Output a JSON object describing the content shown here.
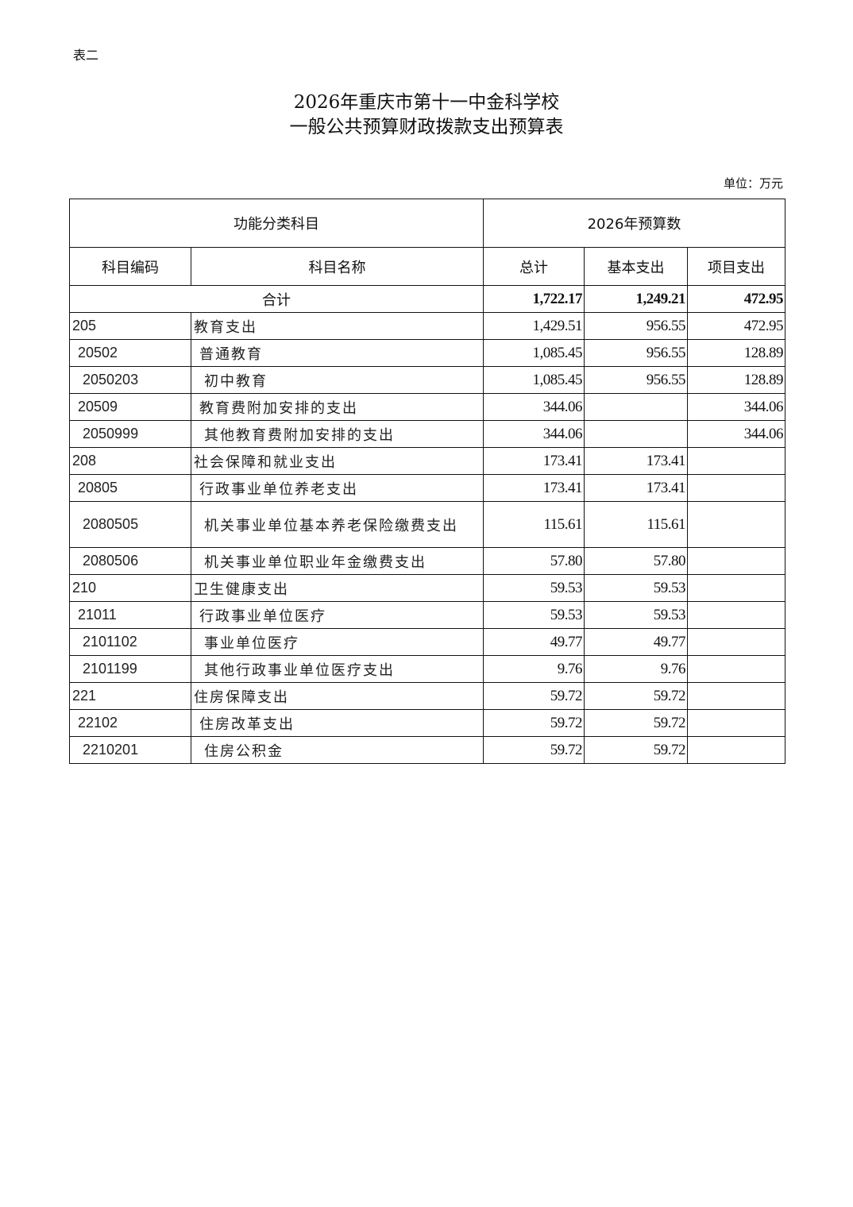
{
  "doc_tag": "表二",
  "title_line1": "2026年重庆市第十一中金科学校",
  "title_line2": "一般公共预算财政拨款支出预算表",
  "unit": "单位：万元",
  "header": {
    "group_left": "功能分类科目",
    "group_right": "2026年预算数",
    "code": "科目编码",
    "name": "科目名称",
    "total": "总计",
    "basic": "基本支出",
    "project": "项目支出"
  },
  "total_row": {
    "label": "合计",
    "total": "1,722.17",
    "basic": "1,249.21",
    "project": "472.95"
  },
  "rows": [
    {
      "code": "205",
      "name": "教育支出",
      "total": "1,429.51",
      "basic": "956.55",
      "project": "472.95",
      "level": 1
    },
    {
      "code": "20502",
      "name": "普通教育",
      "total": "1,085.45",
      "basic": "956.55",
      "project": "128.89",
      "level": 2
    },
    {
      "code": "2050203",
      "name": "初中教育",
      "total": "1,085.45",
      "basic": "956.55",
      "project": "128.89",
      "level": 3
    },
    {
      "code": "20509",
      "name": "教育费附加安排的支出",
      "total": "344.06",
      "basic": "",
      "project": "344.06",
      "level": 2
    },
    {
      "code": "2050999",
      "name": "其他教育费附加安排的支出",
      "total": "344.06",
      "basic": "",
      "project": "344.06",
      "level": 3
    },
    {
      "code": "208",
      "name": "社会保障和就业支出",
      "total": "173.41",
      "basic": "173.41",
      "project": "",
      "level": 1
    },
    {
      "code": "20805",
      "name": "行政事业单位养老支出",
      "total": "173.41",
      "basic": "173.41",
      "project": "",
      "level": 2
    },
    {
      "code": "2080505",
      "name": "机关事业单位基本养老保险缴费支出",
      "total": "115.61",
      "basic": "115.61",
      "project": "",
      "level": 3
    },
    {
      "code": "2080506",
      "name": "机关事业单位职业年金缴费支出",
      "total": "57.80",
      "basic": "57.80",
      "project": "",
      "level": 3
    },
    {
      "code": "210",
      "name": "卫生健康支出",
      "total": "59.53",
      "basic": "59.53",
      "project": "",
      "level": 1
    },
    {
      "code": "21011",
      "name": "行政事业单位医疗",
      "total": "59.53",
      "basic": "59.53",
      "project": "",
      "level": 2
    },
    {
      "code": "2101102",
      "name": "事业单位医疗",
      "total": "49.77",
      "basic": "49.77",
      "project": "",
      "level": 3
    },
    {
      "code": "2101199",
      "name": "其他行政事业单位医疗支出",
      "total": "9.76",
      "basic": "9.76",
      "project": "",
      "level": 3
    },
    {
      "code": "221",
      "name": "住房保障支出",
      "total": "59.72",
      "basic": "59.72",
      "project": "",
      "level": 1
    },
    {
      "code": "22102",
      "name": "住房改革支出",
      "total": "59.72",
      "basic": "59.72",
      "project": "",
      "level": 2
    },
    {
      "code": "2210201",
      "name": "住房公积金",
      "total": "59.72",
      "basic": "59.72",
      "project": "",
      "level": 3
    }
  ]
}
